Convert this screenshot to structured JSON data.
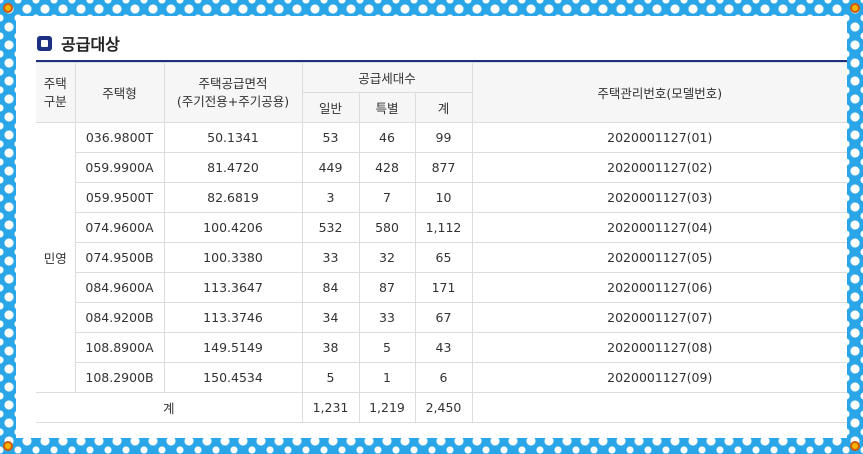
{
  "section": {
    "title": "공급대상"
  },
  "table": {
    "header": {
      "housing_category": "주택\n구분",
      "housing_type": "주택형",
      "supply_area": "주택공급면적\n(주기전용+주기공용)",
      "supply_units": "공급세대수",
      "management_number": "주택관리번호(모델번호)",
      "sub_general": "일반",
      "sub_special": "특별",
      "sub_total": "계"
    },
    "category": "민영",
    "rows": [
      {
        "type": "036.9800T",
        "area": "50.1341",
        "general": "53",
        "special": "46",
        "total": "99",
        "mgmt": "2020001127(01)"
      },
      {
        "type": "059.9900A",
        "area": "81.4720",
        "general": "449",
        "special": "428",
        "total": "877",
        "mgmt": "2020001127(02)"
      },
      {
        "type": "059.9500T",
        "area": "82.6819",
        "general": "3",
        "special": "7",
        "total": "10",
        "mgmt": "2020001127(03)"
      },
      {
        "type": "074.9600A",
        "area": "100.4206",
        "general": "532",
        "special": "580",
        "total": "1,112",
        "mgmt": "2020001127(04)"
      },
      {
        "type": "074.9500B",
        "area": "100.3380",
        "general": "33",
        "special": "32",
        "total": "65",
        "mgmt": "2020001127(05)"
      },
      {
        "type": "084.9600A",
        "area": "113.3647",
        "general": "84",
        "special": "87",
        "total": "171",
        "mgmt": "2020001127(06)"
      },
      {
        "type": "084.9200B",
        "area": "113.3746",
        "general": "34",
        "special": "33",
        "total": "67",
        "mgmt": "2020001127(07)"
      },
      {
        "type": "108.8900A",
        "area": "149.5149",
        "general": "38",
        "special": "5",
        "total": "43",
        "mgmt": "2020001127(08)"
      },
      {
        "type": "108.2900B",
        "area": "150.4534",
        "general": "5",
        "special": "1",
        "total": "6",
        "mgmt": "2020001127(09)"
      }
    ],
    "footer": {
      "label": "계",
      "general": "1,231",
      "special": "1,219",
      "total": "2,450",
      "mgmt": ""
    }
  },
  "colors": {
    "frame": "#2aa6e8",
    "heading_bar": "#1d2f80",
    "border": "#dcdcdc",
    "header_bg": "#f6f6f6"
  }
}
